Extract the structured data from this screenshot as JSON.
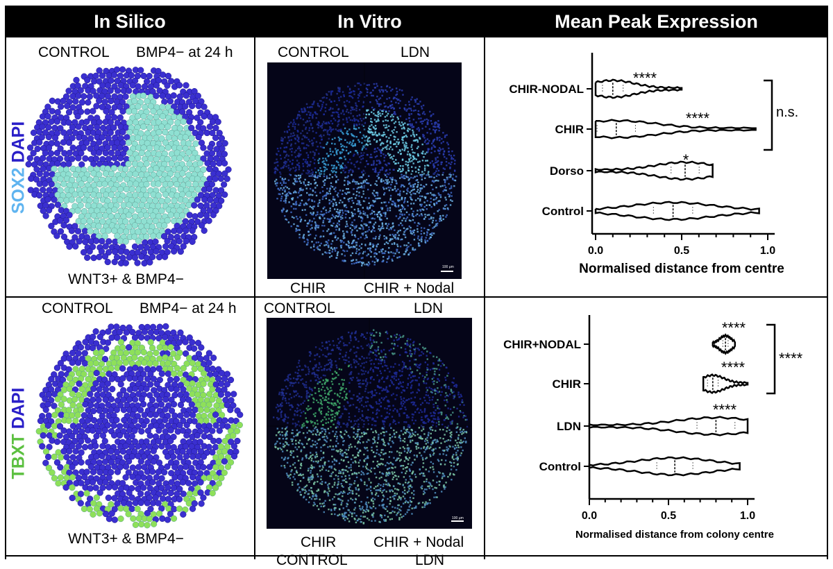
{
  "headers": {
    "col1": "In Silico",
    "col2": "In Vitro",
    "col3": "Mean Peak Expression"
  },
  "row1": {
    "stain_marker": "SOX2",
    "stain_dapi": "DAPI",
    "silico": {
      "top_left": "CONTROL",
      "top_right": "BMP4− at 24 h",
      "bottom": "WNT3+ & BMP4−"
    },
    "vitro": {
      "top_left": "CONTROL",
      "top_right": "LDN",
      "bottom_left": "CHIR",
      "bottom_right": "CHIR + Nodal",
      "scale_bar": "100 μm"
    },
    "colors": {
      "bg_cell": "#3a2fd0",
      "marker": "#8fe0d2"
    }
  },
  "row2": {
    "stain_marker": "TBXT",
    "stain_dapi": "DAPI",
    "silico": {
      "top_left": "CONTROL",
      "top_right": "BMP4− at 24 h",
      "bottom": "WNT3+ & BMP4−"
    },
    "vitro": {
      "top_left": "CONTROL",
      "top_right": "LDN",
      "bottom_left": "CHIR",
      "bottom_right": "CHIR + Nodal",
      "scale_bar": "100 μm"
    },
    "colors": {
      "bg_cell": "#3a2fd0",
      "marker": "#8ee05a"
    }
  },
  "row3_partial": {
    "left": "CONTROL",
    "right": "LDN"
  },
  "chart_data": [
    {
      "type": "violin",
      "title": "",
      "xlabel": "Normalised distance from centre",
      "ylabel": "",
      "xlim": [
        0,
        1
      ],
      "xticks": [
        "0.0",
        "0.5",
        "1.0"
      ],
      "categories": [
        "CHIR-NODAL",
        "CHIR",
        "Dorso",
        "Control"
      ],
      "median": [
        0.1,
        0.12,
        0.52,
        0.45
      ],
      "range": [
        [
          0.0,
          0.5
        ],
        [
          0.0,
          0.93
        ],
        [
          0.0,
          0.68
        ],
        [
          0.0,
          0.95
        ]
      ],
      "significance": [
        "****",
        "****",
        "*",
        ""
      ],
      "bracket": {
        "between": [
          "CHIR-NODAL",
          "CHIR"
        ],
        "label": "n.s."
      }
    },
    {
      "type": "violin",
      "title": "",
      "xlabel": "Normalised distance from colony centre",
      "ylabel": "",
      "xlim": [
        0,
        1
      ],
      "xticks": [
        "0.0",
        "0.5",
        "1.0"
      ],
      "categories": [
        "CHIR+NODAL",
        "CHIR",
        "LDN",
        "Control"
      ],
      "median": [
        0.86,
        0.78,
        0.8,
        0.54
      ],
      "range": [
        [
          0.78,
          0.92
        ],
        [
          0.72,
          1.0
        ],
        [
          0.0,
          1.0
        ],
        [
          0.0,
          0.95
        ]
      ],
      "significance": [
        "****",
        "****",
        "****",
        ""
      ],
      "bracket": {
        "between": [
          "CHIR+NODAL",
          "CHIR"
        ],
        "label": "****"
      }
    }
  ]
}
